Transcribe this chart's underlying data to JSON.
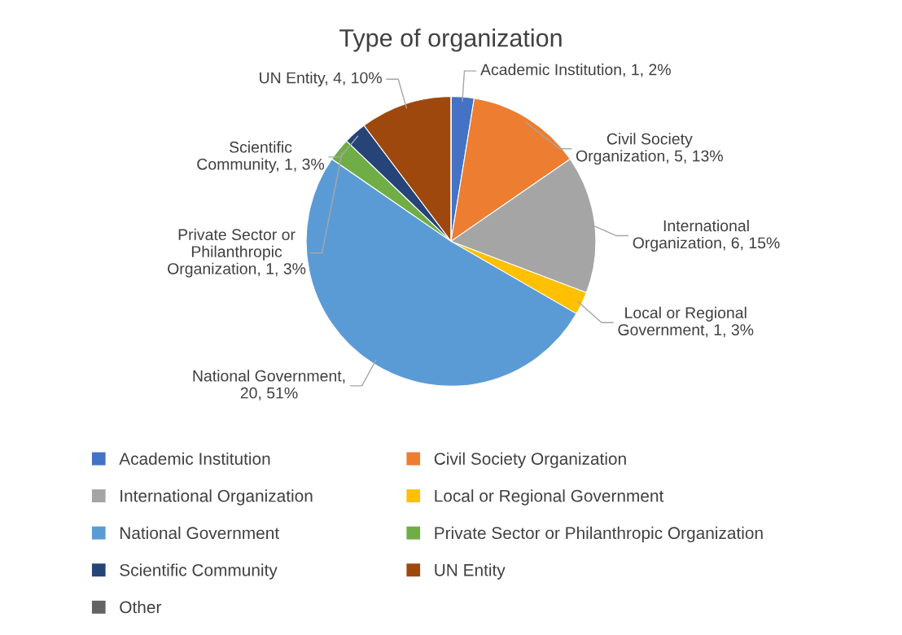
{
  "chart_data": {
    "type": "pie",
    "title": "Type of organization",
    "categories": [
      "Academic Institution",
      "Civil Society Organization",
      "International Organization",
      "Local or Regional Government",
      "National Government",
      "Private Sector or Philanthropic Organization",
      "Scientific Community",
      "UN Entity",
      "Other"
    ],
    "values": [
      1,
      5,
      6,
      1,
      20,
      1,
      1,
      4,
      0
    ],
    "colors": [
      "#4472c4",
      "#ed7d31",
      "#a5a5a5",
      "#ffc000",
      "#5b9bd5",
      "#70ad47",
      "#264478",
      "#9e480e",
      "#636363"
    ],
    "value_labels": [
      "Academic Institution, 1, 2%",
      "Civil Society\nOrganization, 5, 13%",
      "International\nOrganization, 6, 15%",
      "Local or Regional\nGovernment, 1, 3%",
      "National Government,\n20, 51%",
      "Private Sector or\nPhilanthropic\nOrganization, 1, 3%",
      "Scientific\nCommunity, 1, 3%",
      "UN Entity, 4, 10%",
      null
    ],
    "legend": "bottom"
  }
}
